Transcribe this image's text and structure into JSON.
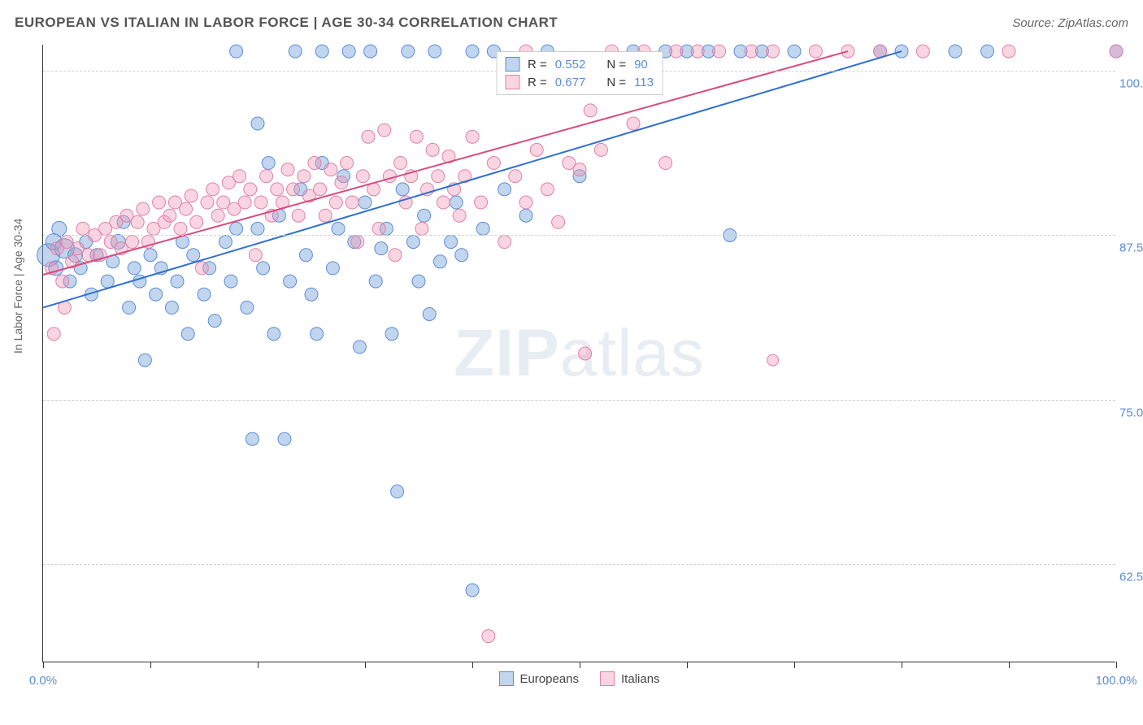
{
  "header": {
    "title": "EUROPEAN VS ITALIAN IN LABOR FORCE | AGE 30-34 CORRELATION CHART",
    "source_prefix": "Source: ",
    "source_name": "ZipAtlas.com"
  },
  "watermark": {
    "zip": "ZIP",
    "atlas": "atlas"
  },
  "y_axis_label": "In Labor Force | Age 30-34",
  "chart": {
    "type": "scatter",
    "background_color": "#ffffff",
    "grid_color": "#d0d0d0",
    "axis_color": "#333333",
    "xlim": [
      0,
      100
    ],
    "ylim": [
      55,
      102
    ],
    "x_ticks": [
      0,
      10,
      20,
      30,
      40,
      50,
      60,
      70,
      80,
      90,
      100
    ],
    "x_tick_labels": {
      "0": "0.0%",
      "100": "100.0%"
    },
    "y_gridlines": [
      62.5,
      75,
      87.5,
      100
    ],
    "y_tick_labels": {
      "62.5": "62.5%",
      "75": "75.0%",
      "87.5": "87.5%",
      "100": "100.0%"
    },
    "series": {
      "europeans": {
        "label": "Europeans",
        "fill": "rgba(117,162,219,0.45)",
        "stroke": "#5b8dd6",
        "R": "0.552",
        "N": "90",
        "trend": {
          "x1": 0,
          "y1": 82,
          "x2": 80,
          "y2": 101.5,
          "stroke": "#2f6fd0",
          "width": 2
        },
        "points": [
          {
            "x": 0.5,
            "y": 86,
            "r": 14
          },
          {
            "x": 1,
            "y": 87,
            "r": 10
          },
          {
            "x": 1.2,
            "y": 85,
            "r": 9
          },
          {
            "x": 2,
            "y": 86.5,
            "r": 12
          },
          {
            "x": 2.5,
            "y": 84,
            "r": 8
          },
          {
            "x": 1.5,
            "y": 88,
            "r": 9
          },
          {
            "x": 3,
            "y": 86,
            "r": 9
          },
          {
            "x": 3.5,
            "y": 85,
            "r": 8
          },
          {
            "x": 4,
            "y": 87,
            "r": 8
          },
          {
            "x": 4.5,
            "y": 83,
            "r": 8
          },
          {
            "x": 5,
            "y": 86,
            "r": 8
          },
          {
            "x": 6,
            "y": 84,
            "r": 8
          },
          {
            "x": 6.5,
            "y": 85.5,
            "r": 8
          },
          {
            "x": 7,
            "y": 87,
            "r": 9
          },
          {
            "x": 7.5,
            "y": 88.5,
            "r": 8
          },
          {
            "x": 8,
            "y": 82,
            "r": 8
          },
          {
            "x": 8.5,
            "y": 85,
            "r": 8
          },
          {
            "x": 9,
            "y": 84,
            "r": 8
          },
          {
            "x": 9.5,
            "y": 78,
            "r": 8
          },
          {
            "x": 10,
            "y": 86,
            "r": 8
          },
          {
            "x": 10.5,
            "y": 83,
            "r": 8
          },
          {
            "x": 11,
            "y": 85,
            "r": 8
          },
          {
            "x": 12,
            "y": 82,
            "r": 8
          },
          {
            "x": 12.5,
            "y": 84,
            "r": 8
          },
          {
            "x": 13,
            "y": 87,
            "r": 8
          },
          {
            "x": 13.5,
            "y": 80,
            "r": 8
          },
          {
            "x": 14,
            "y": 86,
            "r": 8
          },
          {
            "x": 15,
            "y": 83,
            "r": 8
          },
          {
            "x": 15.5,
            "y": 85,
            "r": 8
          },
          {
            "x": 16,
            "y": 81,
            "r": 8
          },
          {
            "x": 17,
            "y": 87,
            "r": 8
          },
          {
            "x": 17.5,
            "y": 84,
            "r": 8
          },
          {
            "x": 18,
            "y": 101.5,
            "r": 8
          },
          {
            "x": 18,
            "y": 88,
            "r": 8
          },
          {
            "x": 19,
            "y": 82,
            "r": 8
          },
          {
            "x": 19.5,
            "y": 72,
            "r": 8
          },
          {
            "x": 20,
            "y": 96,
            "r": 8
          },
          {
            "x": 20,
            "y": 88,
            "r": 8
          },
          {
            "x": 20.5,
            "y": 85,
            "r": 8
          },
          {
            "x": 21,
            "y": 93,
            "r": 8
          },
          {
            "x": 21.5,
            "y": 80,
            "r": 8
          },
          {
            "x": 22,
            "y": 89,
            "r": 8
          },
          {
            "x": 22.5,
            "y": 72,
            "r": 8
          },
          {
            "x": 23,
            "y": 84,
            "r": 8
          },
          {
            "x": 23.5,
            "y": 101.5,
            "r": 8
          },
          {
            "x": 24,
            "y": 91,
            "r": 8
          },
          {
            "x": 24.5,
            "y": 86,
            "r": 8
          },
          {
            "x": 25,
            "y": 83,
            "r": 8
          },
          {
            "x": 25.5,
            "y": 80,
            "r": 8
          },
          {
            "x": 26,
            "y": 101.5,
            "r": 8
          },
          {
            "x": 26,
            "y": 93,
            "r": 8
          },
          {
            "x": 27,
            "y": 85,
            "r": 8
          },
          {
            "x": 27.5,
            "y": 88,
            "r": 8
          },
          {
            "x": 28,
            "y": 92,
            "r": 8
          },
          {
            "x": 28.5,
            "y": 101.5,
            "r": 8
          },
          {
            "x": 29,
            "y": 87,
            "r": 8
          },
          {
            "x": 29.5,
            "y": 79,
            "r": 8
          },
          {
            "x": 30,
            "y": 90,
            "r": 8
          },
          {
            "x": 30.5,
            "y": 101.5,
            "r": 8
          },
          {
            "x": 31,
            "y": 84,
            "r": 8
          },
          {
            "x": 31.5,
            "y": 86.5,
            "r": 8
          },
          {
            "x": 32,
            "y": 88,
            "r": 8
          },
          {
            "x": 32.5,
            "y": 80,
            "r": 8
          },
          {
            "x": 33,
            "y": 68,
            "r": 8
          },
          {
            "x": 33.5,
            "y": 91,
            "r": 8
          },
          {
            "x": 34,
            "y": 101.5,
            "r": 8
          },
          {
            "x": 34.5,
            "y": 87,
            "r": 8
          },
          {
            "x": 35,
            "y": 84,
            "r": 8
          },
          {
            "x": 35.5,
            "y": 89,
            "r": 8
          },
          {
            "x": 36,
            "y": 81.5,
            "r": 8
          },
          {
            "x": 36.5,
            "y": 101.5,
            "r": 8
          },
          {
            "x": 37,
            "y": 85.5,
            "r": 8
          },
          {
            "x": 38,
            "y": 87,
            "r": 8
          },
          {
            "x": 38.5,
            "y": 90,
            "r": 8
          },
          {
            "x": 39,
            "y": 86,
            "r": 8
          },
          {
            "x": 40,
            "y": 60.5,
            "r": 8
          },
          {
            "x": 40,
            "y": 101.5,
            "r": 8
          },
          {
            "x": 41,
            "y": 88,
            "r": 8
          },
          {
            "x": 42,
            "y": 101.5,
            "r": 8
          },
          {
            "x": 43,
            "y": 91,
            "r": 8
          },
          {
            "x": 45,
            "y": 89,
            "r": 8
          },
          {
            "x": 47,
            "y": 101.5,
            "r": 8
          },
          {
            "x": 50,
            "y": 92,
            "r": 8
          },
          {
            "x": 55,
            "y": 101.5,
            "r": 8
          },
          {
            "x": 58,
            "y": 101.5,
            "r": 8
          },
          {
            "x": 60,
            "y": 101.5,
            "r": 8
          },
          {
            "x": 62,
            "y": 101.5,
            "r": 8
          },
          {
            "x": 64,
            "y": 87.5,
            "r": 8
          },
          {
            "x": 65,
            "y": 101.5,
            "r": 8
          },
          {
            "x": 67,
            "y": 101.5,
            "r": 8
          },
          {
            "x": 70,
            "y": 101.5,
            "r": 8
          },
          {
            "x": 78,
            "y": 101.5,
            "r": 8
          },
          {
            "x": 80,
            "y": 101.5,
            "r": 8
          },
          {
            "x": 85,
            "y": 101.5,
            "r": 8
          },
          {
            "x": 88,
            "y": 101.5,
            "r": 8
          },
          {
            "x": 100,
            "y": 101.5,
            "r": 8
          }
        ]
      },
      "italians": {
        "label": "Italians",
        "fill": "rgba(240,150,180,0.40)",
        "stroke": "#e081a8",
        "R": "0.677",
        "N": "113",
        "trend": {
          "x1": 0,
          "y1": 84.5,
          "x2": 75,
          "y2": 101.5,
          "stroke": "#d94b7e",
          "width": 2
        },
        "points": [
          {
            "x": 0.8,
            "y": 85,
            "r": 8
          },
          {
            "x": 1.3,
            "y": 86.5,
            "r": 8
          },
          {
            "x": 1.8,
            "y": 84,
            "r": 8
          },
          {
            "x": 2.2,
            "y": 87,
            "r": 8
          },
          {
            "x": 1,
            "y": 80,
            "r": 8
          },
          {
            "x": 2,
            "y": 82,
            "r": 8
          },
          {
            "x": 2.7,
            "y": 85.5,
            "r": 8
          },
          {
            "x": 3.2,
            "y": 86.5,
            "r": 8
          },
          {
            "x": 3.7,
            "y": 88,
            "r": 8
          },
          {
            "x": 4.2,
            "y": 86,
            "r": 8
          },
          {
            "x": 4.8,
            "y": 87.5,
            "r": 8
          },
          {
            "x": 5.3,
            "y": 86,
            "r": 8
          },
          {
            "x": 5.8,
            "y": 88,
            "r": 8
          },
          {
            "x": 6.3,
            "y": 87,
            "r": 8
          },
          {
            "x": 6.8,
            "y": 88.5,
            "r": 8
          },
          {
            "x": 7.3,
            "y": 86.5,
            "r": 8
          },
          {
            "x": 7.8,
            "y": 89,
            "r": 8
          },
          {
            "x": 8.3,
            "y": 87,
            "r": 8
          },
          {
            "x": 8.8,
            "y": 88.5,
            "r": 8
          },
          {
            "x": 9.3,
            "y": 89.5,
            "r": 8
          },
          {
            "x": 9.8,
            "y": 87,
            "r": 8
          },
          {
            "x": 10.3,
            "y": 88,
            "r": 8
          },
          {
            "x": 10.8,
            "y": 90,
            "r": 8
          },
          {
            "x": 11.3,
            "y": 88.5,
            "r": 8
          },
          {
            "x": 11.8,
            "y": 89,
            "r": 8
          },
          {
            "x": 12.3,
            "y": 90,
            "r": 8
          },
          {
            "x": 12.8,
            "y": 88,
            "r": 8
          },
          {
            "x": 13.3,
            "y": 89.5,
            "r": 8
          },
          {
            "x": 13.8,
            "y": 90.5,
            "r": 8
          },
          {
            "x": 14.3,
            "y": 88.5,
            "r": 8
          },
          {
            "x": 14.8,
            "y": 85,
            "r": 8
          },
          {
            "x": 15.3,
            "y": 90,
            "r": 8
          },
          {
            "x": 15.8,
            "y": 91,
            "r": 8
          },
          {
            "x": 16.3,
            "y": 89,
            "r": 8
          },
          {
            "x": 16.8,
            "y": 90,
            "r": 8
          },
          {
            "x": 17.3,
            "y": 91.5,
            "r": 8
          },
          {
            "x": 17.8,
            "y": 89.5,
            "r": 8
          },
          {
            "x": 18.3,
            "y": 92,
            "r": 8
          },
          {
            "x": 18.8,
            "y": 90,
            "r": 8
          },
          {
            "x": 19.3,
            "y": 91,
            "r": 8
          },
          {
            "x": 19.8,
            "y": 86,
            "r": 8
          },
          {
            "x": 20.3,
            "y": 90,
            "r": 8
          },
          {
            "x": 20.8,
            "y": 92,
            "r": 8
          },
          {
            "x": 21.3,
            "y": 89,
            "r": 8
          },
          {
            "x": 21.8,
            "y": 91,
            "r": 8
          },
          {
            "x": 22.3,
            "y": 90,
            "r": 8
          },
          {
            "x": 22.8,
            "y": 92.5,
            "r": 8
          },
          {
            "x": 23.3,
            "y": 91,
            "r": 8
          },
          {
            "x": 23.8,
            "y": 89,
            "r": 8
          },
          {
            "x": 24.3,
            "y": 92,
            "r": 8
          },
          {
            "x": 24.8,
            "y": 90.5,
            "r": 8
          },
          {
            "x": 25.3,
            "y": 93,
            "r": 8
          },
          {
            "x": 25.8,
            "y": 91,
            "r": 8
          },
          {
            "x": 26.3,
            "y": 89,
            "r": 8
          },
          {
            "x": 26.8,
            "y": 92.5,
            "r": 8
          },
          {
            "x": 27.3,
            "y": 90,
            "r": 8
          },
          {
            "x": 27.8,
            "y": 91.5,
            "r": 8
          },
          {
            "x": 28.3,
            "y": 93,
            "r": 8
          },
          {
            "x": 28.8,
            "y": 90,
            "r": 8
          },
          {
            "x": 29.3,
            "y": 87,
            "r": 8
          },
          {
            "x": 29.8,
            "y": 92,
            "r": 8
          },
          {
            "x": 30.3,
            "y": 95,
            "r": 8
          },
          {
            "x": 30.8,
            "y": 91,
            "r": 8
          },
          {
            "x": 31.3,
            "y": 88,
            "r": 8
          },
          {
            "x": 31.8,
            "y": 95.5,
            "r": 8
          },
          {
            "x": 32.3,
            "y": 92,
            "r": 8
          },
          {
            "x": 32.8,
            "y": 86,
            "r": 8
          },
          {
            "x": 33.3,
            "y": 93,
            "r": 8
          },
          {
            "x": 33.8,
            "y": 90,
            "r": 8
          },
          {
            "x": 34.3,
            "y": 92,
            "r": 8
          },
          {
            "x": 34.8,
            "y": 95,
            "r": 8
          },
          {
            "x": 35.3,
            "y": 88,
            "r": 8
          },
          {
            "x": 35.8,
            "y": 91,
            "r": 8
          },
          {
            "x": 36.3,
            "y": 94,
            "r": 8
          },
          {
            "x": 36.8,
            "y": 92,
            "r": 8
          },
          {
            "x": 37.3,
            "y": 90,
            "r": 8
          },
          {
            "x": 37.8,
            "y": 93.5,
            "r": 8
          },
          {
            "x": 38.3,
            "y": 91,
            "r": 8
          },
          {
            "x": 38.8,
            "y": 89,
            "r": 8
          },
          {
            "x": 39.3,
            "y": 92,
            "r": 8
          },
          {
            "x": 40,
            "y": 95,
            "r": 8
          },
          {
            "x": 40.8,
            "y": 90,
            "r": 8
          },
          {
            "x": 41.5,
            "y": 57,
            "r": 8
          },
          {
            "x": 42,
            "y": 93,
            "r": 8
          },
          {
            "x": 43,
            "y": 87,
            "r": 8
          },
          {
            "x": 44,
            "y": 92,
            "r": 8
          },
          {
            "x": 45,
            "y": 90,
            "r": 8
          },
          {
            "x": 45,
            "y": 101.5,
            "r": 8
          },
          {
            "x": 46,
            "y": 94,
            "r": 8
          },
          {
            "x": 47,
            "y": 91,
            "r": 8
          },
          {
            "x": 48,
            "y": 88.5,
            "r": 8
          },
          {
            "x": 49,
            "y": 93,
            "r": 8
          },
          {
            "x": 50,
            "y": 92.5,
            "r": 8
          },
          {
            "x": 50.5,
            "y": 78.5,
            "r": 8
          },
          {
            "x": 51,
            "y": 97,
            "r": 8
          },
          {
            "x": 52,
            "y": 94,
            "r": 8
          },
          {
            "x": 53,
            "y": 101.5,
            "r": 8
          },
          {
            "x": 55,
            "y": 96,
            "r": 8
          },
          {
            "x": 56,
            "y": 101.5,
            "r": 8
          },
          {
            "x": 58,
            "y": 93,
            "r": 8
          },
          {
            "x": 59,
            "y": 101.5,
            "r": 8
          },
          {
            "x": 61,
            "y": 101.5,
            "r": 8
          },
          {
            "x": 63,
            "y": 101.5,
            "r": 8
          },
          {
            "x": 66,
            "y": 101.5,
            "r": 8
          },
          {
            "x": 68,
            "y": 78,
            "r": 7
          },
          {
            "x": 68,
            "y": 101.5,
            "r": 8
          },
          {
            "x": 72,
            "y": 101.5,
            "r": 8
          },
          {
            "x": 75,
            "y": 101.5,
            "r": 8
          },
          {
            "x": 78,
            "y": 101.5,
            "r": 8
          },
          {
            "x": 82,
            "y": 101.5,
            "r": 8
          },
          {
            "x": 90,
            "y": 101.5,
            "r": 8
          },
          {
            "x": 100,
            "y": 101.5,
            "r": 8
          }
        ]
      }
    }
  },
  "legend_top": {
    "r_label": "R =",
    "n_label": "N ="
  }
}
